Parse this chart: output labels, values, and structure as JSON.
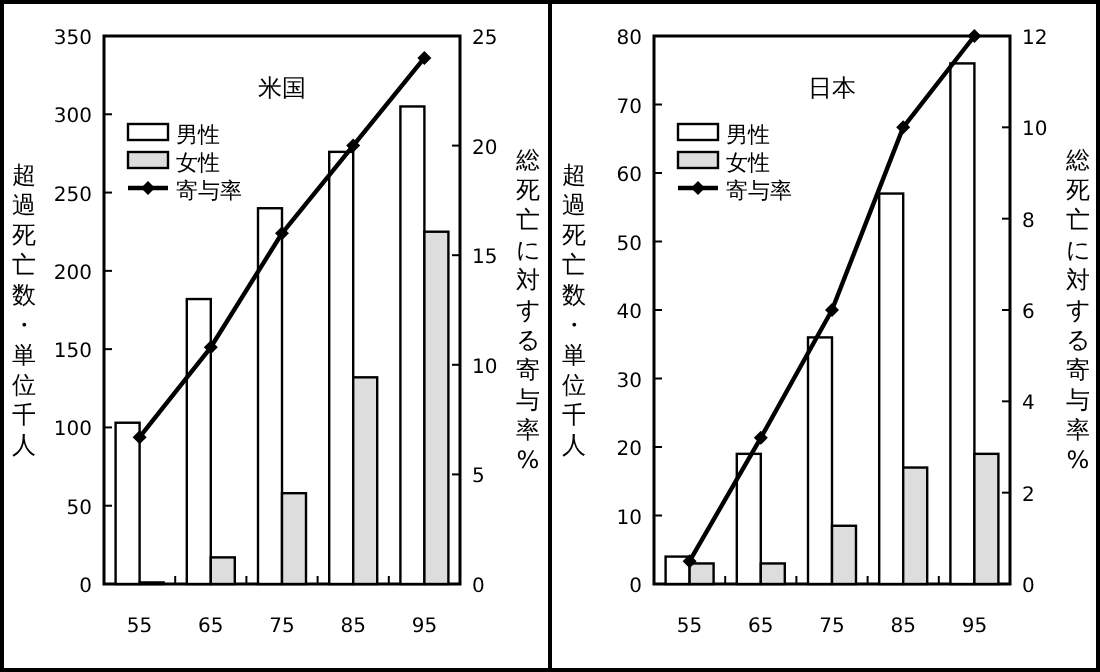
{
  "chart_data": [
    {
      "type": "bar",
      "title": "米国",
      "categories": [
        "55",
        "65",
        "75",
        "85",
        "95"
      ],
      "ylabel": "超過死亡数・単位千人",
      "y2label": "総死亡に対する寄与率%",
      "ylim": [
        0,
        350
      ],
      "yticks": [
        0,
        50,
        100,
        150,
        200,
        250,
        300,
        350
      ],
      "y2lim": [
        0,
        25
      ],
      "y2ticks": [
        0,
        5,
        10,
        15,
        20,
        25
      ],
      "legend": "top left",
      "marker": "diamond",
      "series": [
        {
          "name": "男性",
          "color": "#ffffff",
          "values": [
            103,
            182,
            240,
            276,
            305
          ]
        },
        {
          "name": "女性",
          "color": "#dddddd",
          "values": [
            1,
            17,
            58,
            132,
            225
          ]
        },
        {
          "name": "寄与率",
          "type": "line",
          "axis": "y2",
          "color": "#000000",
          "values": [
            6.7,
            10.8,
            16,
            20,
            24
          ]
        }
      ]
    },
    {
      "type": "bar",
      "title": "日本",
      "categories": [
        "55",
        "65",
        "75",
        "85",
        "95"
      ],
      "ylabel": "超過死亡数・単位千人",
      "y2label": "総死亡に対する寄与率%",
      "ylim": [
        0,
        80
      ],
      "yticks": [
        0,
        10,
        20,
        30,
        40,
        50,
        60,
        70,
        80
      ],
      "y2lim": [
        0,
        12
      ],
      "y2ticks": [
        0,
        2,
        4,
        6,
        8,
        10,
        12
      ],
      "legend": "top left",
      "marker": "diamond",
      "series": [
        {
          "name": "男性",
          "color": "#ffffff",
          "values": [
            4,
            19,
            36,
            57,
            76
          ]
        },
        {
          "name": "女性",
          "color": "#dddddd",
          "values": [
            3,
            3,
            8.5,
            17,
            19
          ]
        },
        {
          "name": "寄与率",
          "type": "line",
          "axis": "y2",
          "color": "#000000",
          "values": [
            0.5,
            3.2,
            6,
            10,
            12
          ]
        }
      ]
    }
  ]
}
